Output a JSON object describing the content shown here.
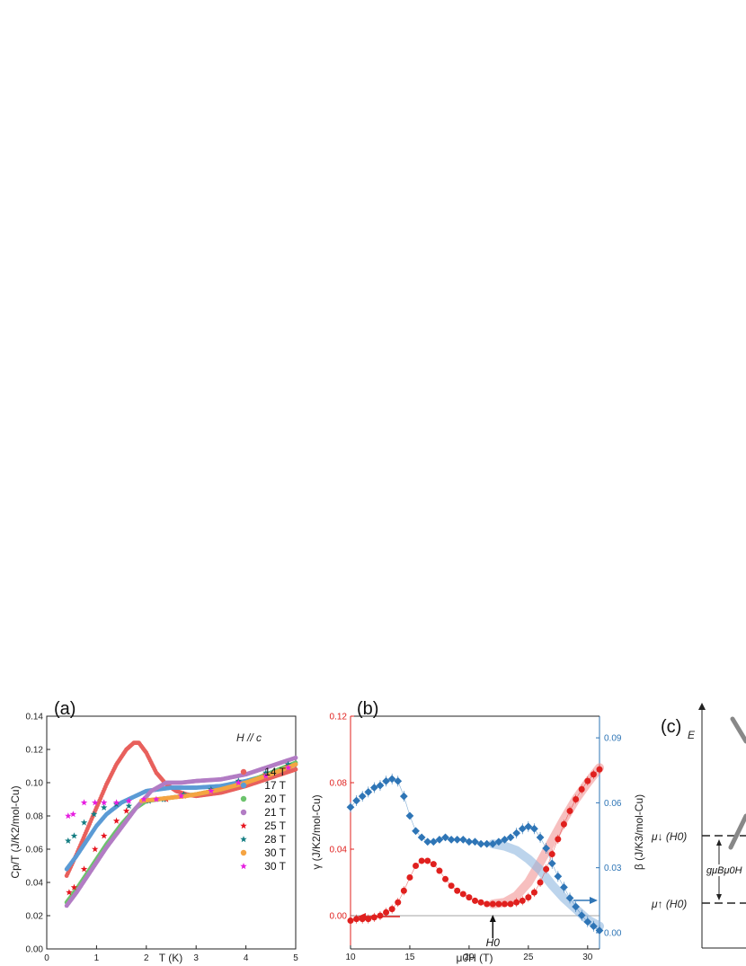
{
  "chart_data": [
    {
      "type": "scatter",
      "panel_label": "(a)",
      "annotation": "H // c",
      "xlabel": "T (K)",
      "ylabel": "Cp/T (J/K2/mol-Cu)",
      "xlim": [
        0,
        5
      ],
      "ylim": [
        0,
        0.14
      ],
      "xticks": [
        "0",
        "1",
        "2",
        "3",
        "4",
        "5"
      ],
      "yticks": [
        "0.00",
        "0.02",
        "0.04",
        "0.06",
        "0.08",
        "0.10",
        "0.12",
        "0.14"
      ],
      "legend_position": "bottom-right",
      "series": [
        {
          "name": "14 T",
          "marker": "circle",
          "color": "#e8605c",
          "x": [
            0.4,
            0.6,
            0.8,
            1.0,
            1.2,
            1.4,
            1.6,
            1.75,
            1.85,
            2.0,
            2.2,
            2.4,
            2.6,
            2.8,
            3.0,
            3.5,
            4.0,
            4.5,
            5.0
          ],
          "y": [
            0.044,
            0.057,
            0.071,
            0.085,
            0.099,
            0.111,
            0.12,
            0.124,
            0.124,
            0.118,
            0.106,
            0.099,
            0.095,
            0.093,
            0.092,
            0.094,
            0.098,
            0.103,
            0.108
          ]
        },
        {
          "name": "17 T",
          "marker": "circle",
          "color": "#5b9bd5",
          "x": [
            0.4,
            0.6,
            0.8,
            1.0,
            1.2,
            1.5,
            2.0,
            2.5,
            3.0,
            3.5,
            4.0,
            4.5,
            5.0
          ],
          "y": [
            0.048,
            0.056,
            0.065,
            0.074,
            0.081,
            0.088,
            0.095,
            0.097,
            0.097,
            0.098,
            0.101,
            0.105,
            0.111
          ]
        },
        {
          "name": "20 T",
          "marker": "circle",
          "color": "#6cc36c",
          "x": [
            0.4,
            0.6,
            0.8,
            1.0,
            1.2,
            1.5,
            1.8,
            2.0,
            2.5,
            3.0,
            3.5,
            4.0,
            4.5,
            5.0
          ],
          "y": [
            0.028,
            0.036,
            0.045,
            0.054,
            0.063,
            0.075,
            0.085,
            0.089,
            0.091,
            0.093,
            0.096,
            0.1,
            0.106,
            0.112
          ]
        },
        {
          "name": "21 T",
          "marker": "circle",
          "color": "#b27cc4",
          "x": [
            0.4,
            0.6,
            0.8,
            1.0,
            1.2,
            1.5,
            1.8,
            2.1,
            2.4,
            2.7,
            3.0,
            3.5,
            4.0,
            4.5,
            5.0
          ],
          "y": [
            0.026,
            0.034,
            0.043,
            0.052,
            0.061,
            0.073,
            0.085,
            0.095,
            0.1,
            0.1,
            0.101,
            0.102,
            0.105,
            0.11,
            0.115
          ]
        },
        {
          "name": "25 T",
          "marker": "star",
          "color": "#e6141e",
          "x": [
            0.45,
            0.55,
            0.75,
            0.97,
            1.15,
            1.4,
            1.6,
            2.05,
            2.4,
            2.75,
            3.3,
            3.85,
            4.4,
            4.85
          ],
          "y": [
            0.034,
            0.037,
            0.048,
            0.06,
            0.068,
            0.077,
            0.083,
            0.089,
            0.09,
            0.092,
            0.095,
            0.1,
            0.105,
            0.11
          ]
        },
        {
          "name": "28 T",
          "marker": "star",
          "color": "#147d82",
          "x": [
            0.43,
            0.55,
            0.75,
            0.95,
            1.15,
            1.4,
            1.65,
            2.05,
            2.35,
            2.75,
            3.3,
            3.85,
            4.4,
            4.85
          ],
          "y": [
            0.065,
            0.068,
            0.076,
            0.081,
            0.085,
            0.087,
            0.086,
            0.089,
            0.09,
            0.093,
            0.096,
            0.101,
            0.106,
            0.111
          ]
        },
        {
          "name": "30 T",
          "marker": "circle",
          "color": "#f5a442",
          "x": [
            1.9,
            2.2,
            2.5,
            2.8,
            3.0,
            3.5,
            4.0,
            4.5,
            5.0
          ],
          "y": [
            0.089,
            0.09,
            0.091,
            0.092,
            0.093,
            0.096,
            0.1,
            0.105,
            0.111
          ]
        },
        {
          "name": "30 T",
          "marker": "star",
          "color": "#e61ee0",
          "x": [
            0.43,
            0.53,
            0.75,
            0.97,
            1.15,
            1.4,
            1.65,
            1.95,
            2.2,
            2.7,
            3.3,
            3.85,
            4.4,
            4.85
          ],
          "y": [
            0.08,
            0.081,
            0.088,
            0.088,
            0.088,
            0.088,
            0.089,
            0.09,
            0.09,
            0.092,
            0.095,
            0.1,
            0.104,
            0.109
          ]
        }
      ]
    },
    {
      "type": "scatter",
      "panel_label": "(b)",
      "xlabel": "μ0H (T)",
      "ylabel_left": "γ (J/K2/mol-Cu)",
      "ylabel_right": "β (J/K3/mol-Cu)",
      "xlim": [
        10,
        31
      ],
      "ylim_left": [
        -0.02,
        0.12
      ],
      "ylim_right": [
        -0.0075,
        0.1
      ],
      "xticks": [
        "10",
        "15",
        "20",
        "25",
        "30"
      ],
      "yticks_left": [
        "0.00",
        "0.04",
        "0.08",
        "0.12"
      ],
      "yticks_right": [
        "0.00",
        "0.03",
        "0.06",
        "0.09"
      ],
      "annotation": "H0",
      "annotation_x": 22,
      "series": [
        {
          "name": "γ",
          "axis": "left",
          "marker": "circle",
          "color": "#e0201e",
          "x": [
            10.0,
            10.5,
            11.0,
            11.5,
            12.0,
            12.5,
            13.0,
            13.5,
            14.0,
            14.5,
            15.0,
            15.5,
            16.0,
            16.5,
            17.0,
            17.5,
            18.0,
            18.5,
            19.0,
            19.5,
            20.0,
            20.5,
            21.0,
            21.5,
            22.0,
            22.5,
            23.0,
            23.5,
            24.0,
            24.5,
            25.0,
            25.5,
            26.0,
            26.5,
            27.0,
            27.5,
            28.0,
            28.5,
            29.0,
            29.5,
            30.0,
            30.5,
            31.0
          ],
          "y": [
            -0.003,
            -0.002,
            -0.002,
            -0.002,
            -0.001,
            0.0,
            0.002,
            0.004,
            0.008,
            0.015,
            0.023,
            0.03,
            0.033,
            0.033,
            0.031,
            0.027,
            0.022,
            0.018,
            0.015,
            0.013,
            0.011,
            0.009,
            0.008,
            0.007,
            0.007,
            0.007,
            0.007,
            0.007,
            0.008,
            0.009,
            0.011,
            0.014,
            0.02,
            0.028,
            0.037,
            0.046,
            0.055,
            0.063,
            0.07,
            0.076,
            0.081,
            0.085,
            0.088
          ]
        },
        {
          "name": "β",
          "axis": "right",
          "marker": "diamond",
          "color": "#2e75b6",
          "x": [
            10.0,
            10.5,
            11.0,
            11.5,
            12.0,
            12.5,
            13.0,
            13.5,
            14.0,
            14.5,
            15.0,
            15.5,
            16.0,
            16.5,
            17.0,
            17.5,
            18.0,
            18.5,
            19.0,
            19.5,
            20.0,
            20.5,
            21.0,
            21.5,
            22.0,
            22.5,
            23.0,
            23.5,
            24.0,
            24.5,
            25.0,
            25.5,
            26.0,
            26.5,
            27.0,
            27.5,
            28.0,
            28.5,
            29.0,
            29.5,
            30.0,
            30.5,
            31.0
          ],
          "y": [
            0.058,
            0.061,
            0.063,
            0.065,
            0.067,
            0.068,
            0.07,
            0.071,
            0.07,
            0.063,
            0.054,
            0.047,
            0.044,
            0.042,
            0.042,
            0.043,
            0.044,
            0.043,
            0.043,
            0.043,
            0.042,
            0.042,
            0.041,
            0.041,
            0.041,
            0.042,
            0.043,
            0.044,
            0.046,
            0.048,
            0.049,
            0.048,
            0.044,
            0.039,
            0.032,
            0.026,
            0.021,
            0.016,
            0.012,
            0.008,
            0.005,
            0.003,
            0.001
          ]
        }
      ]
    },
    {
      "type": "diagram",
      "panel_label": "(c)",
      "axis_label": "E",
      "levels": [
        "μ↓ (H0)",
        "μ↑ (H0)"
      ],
      "gap_label": "gμBμ0H"
    }
  ]
}
